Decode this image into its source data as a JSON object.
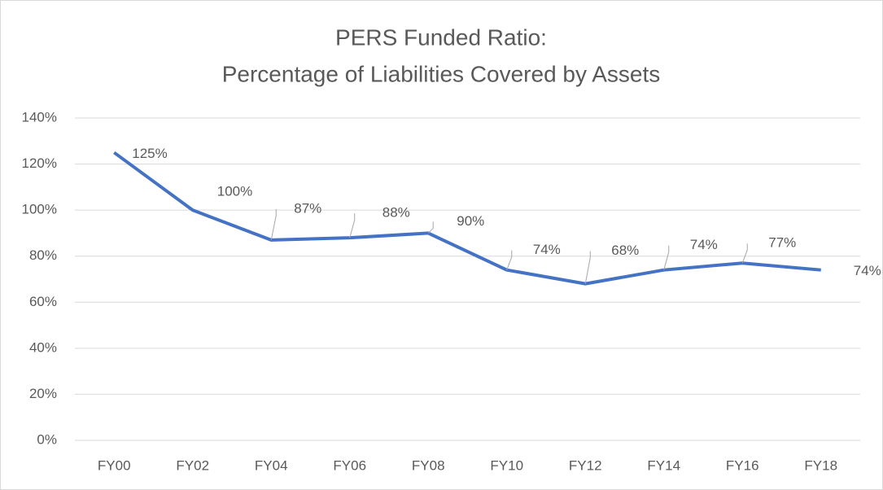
{
  "chart_data": {
    "type": "line",
    "title": [
      "PERS Funded Ratio:",
      "Percentage of Liabilities Covered by Assets"
    ],
    "categories": [
      "FY00",
      "FY02",
      "FY04",
      "FY06",
      "FY08",
      "FY10",
      "FY12",
      "FY14",
      "FY16",
      "FY18"
    ],
    "values": [
      125,
      100,
      87,
      88,
      90,
      74,
      68,
      74,
      77,
      74
    ],
    "value_labels": [
      "125%",
      "100%",
      "87%",
      "88%",
      "90%",
      "74%",
      "68%",
      "74%",
      "77%",
      "74%"
    ],
    "color": "#4472c4",
    "ylim": [
      0,
      140
    ],
    "yticks": [
      {
        "value": 0,
        "label": "0%"
      },
      {
        "value": 20,
        "label": "20%"
      },
      {
        "value": 40,
        "label": "40%"
      },
      {
        "value": 60,
        "label": "60%"
      },
      {
        "value": 80,
        "label": "80%"
      },
      {
        "value": 100,
        "label": "100%"
      },
      {
        "value": 120,
        "label": "120%"
      },
      {
        "value": 140,
        "label": "140%"
      }
    ],
    "grid": true
  }
}
